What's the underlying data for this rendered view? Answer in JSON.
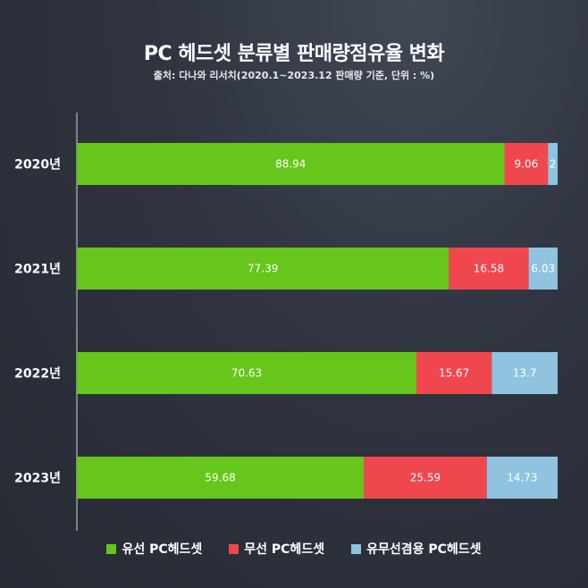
{
  "chart_data": {
    "type": "bar",
    "orientation": "horizontal",
    "stacked": true,
    "title": "PC 헤드셋 분류별 판매량점유율 변화",
    "subtitle": "출처: 다나와 리서치(2020.1~2023.12 판매량 기준, 단위 : %)",
    "categories": [
      "2020년",
      "2021년",
      "2022년",
      "2023년"
    ],
    "series": [
      {
        "name": "유선 PC헤드셋",
        "color": "#66c61c",
        "values": [
          88.94,
          77.39,
          70.63,
          59.68
        ],
        "labels": [
          "88.94",
          "77.39",
          "70.63",
          "59.68"
        ]
      },
      {
        "name": "무선 PC헤드셋",
        "color": "#f0474f",
        "values": [
          9.06,
          16.58,
          15.67,
          25.59
        ],
        "labels": [
          "9.06",
          "16.58",
          "15.67",
          "25.59"
        ]
      },
      {
        "name": "유무선겸용 PC헤드셋",
        "color": "#8fc3e0",
        "values": [
          2,
          6.03,
          13.7,
          14.73
        ],
        "labels": [
          "2",
          "6.03",
          "13.7",
          "14.73"
        ]
      }
    ],
    "xlim": [
      0,
      100
    ],
    "grid": false,
    "legend": "bottom"
  }
}
